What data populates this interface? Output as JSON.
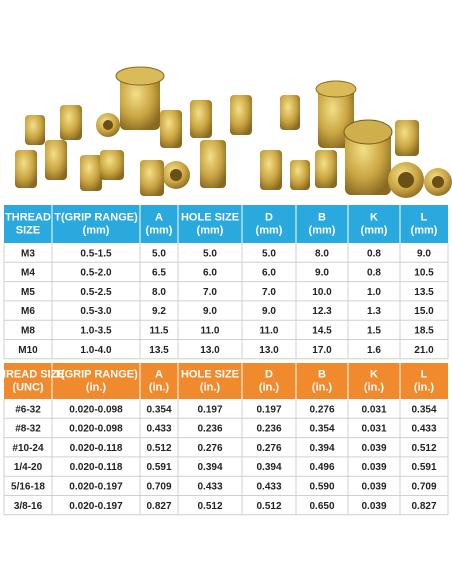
{
  "tables": [
    {
      "header": [
        [
          "THREAD",
          "SIZE"
        ],
        [
          "T(GRIP RANGE)",
          "(mm)"
        ],
        [
          "A",
          "(mm)"
        ],
        [
          "HOLE SIZE",
          "(mm)"
        ],
        [
          "D",
          "(mm)"
        ],
        [
          "B",
          "(mm)"
        ],
        [
          "K",
          "(mm)"
        ],
        [
          "L",
          "(mm)"
        ]
      ],
      "rows": [
        [
          "M3",
          "0.5-1.5",
          "5.0",
          "5.0",
          "5.0",
          "8.0",
          "0.8",
          "9.0"
        ],
        [
          "M4",
          "0.5-2.0",
          "6.5",
          "6.0",
          "6.0",
          "9.0",
          "0.8",
          "10.5"
        ],
        [
          "M5",
          "0.5-2.5",
          "8.0",
          "7.0",
          "7.0",
          "10.0",
          "1.0",
          "13.5"
        ],
        [
          "M6",
          "0.5-3.0",
          "9.2",
          "9.0",
          "9.0",
          "12.3",
          "1.3",
          "15.0"
        ],
        [
          "M8",
          "1.0-3.5",
          "11.5",
          "11.0",
          "11.0",
          "14.5",
          "1.5",
          "18.5"
        ],
        [
          "M10",
          "1.0-4.0",
          "13.5",
          "13.0",
          "13.0",
          "17.0",
          "1.6",
          "21.0"
        ]
      ]
    },
    {
      "header": [
        [
          "THREAD SIZE",
          "(UNC)"
        ],
        [
          "T(GRIP RANGE)",
          "(in.)"
        ],
        [
          "A",
          "(in.)"
        ],
        [
          "HOLE SIZE",
          "(in.)"
        ],
        [
          "D",
          "(in.)"
        ],
        [
          "B",
          "(in.)"
        ],
        [
          "K",
          "(in.)"
        ],
        [
          "L",
          "(in.)"
        ]
      ],
      "rows": [
        [
          "#6-32",
          "0.020-0.098",
          "0.354",
          "0.197",
          "0.197",
          "0.276",
          "0.031",
          "0.354"
        ],
        [
          "#8-32",
          "0.020-0.098",
          "0.433",
          "0.236",
          "0.236",
          "0.354",
          "0.031",
          "0.433"
        ],
        [
          "#10-24",
          "0.020-0.118",
          "0.512",
          "0.276",
          "0.276",
          "0.394",
          "0.039",
          "0.512"
        ],
        [
          "1/4-20",
          "0.020-0.118",
          "0.591",
          "0.394",
          "0.394",
          "0.496",
          "0.039",
          "0.591"
        ],
        [
          "5/16-18",
          "0.020-0.197",
          "0.709",
          "0.433",
          "0.433",
          "0.590",
          "0.039",
          "0.709"
        ],
        [
          "3/8-16",
          "0.020-0.197",
          "0.827",
          "0.512",
          "0.512",
          "0.650",
          "0.039",
          "0.827"
        ]
      ]
    }
  ]
}
